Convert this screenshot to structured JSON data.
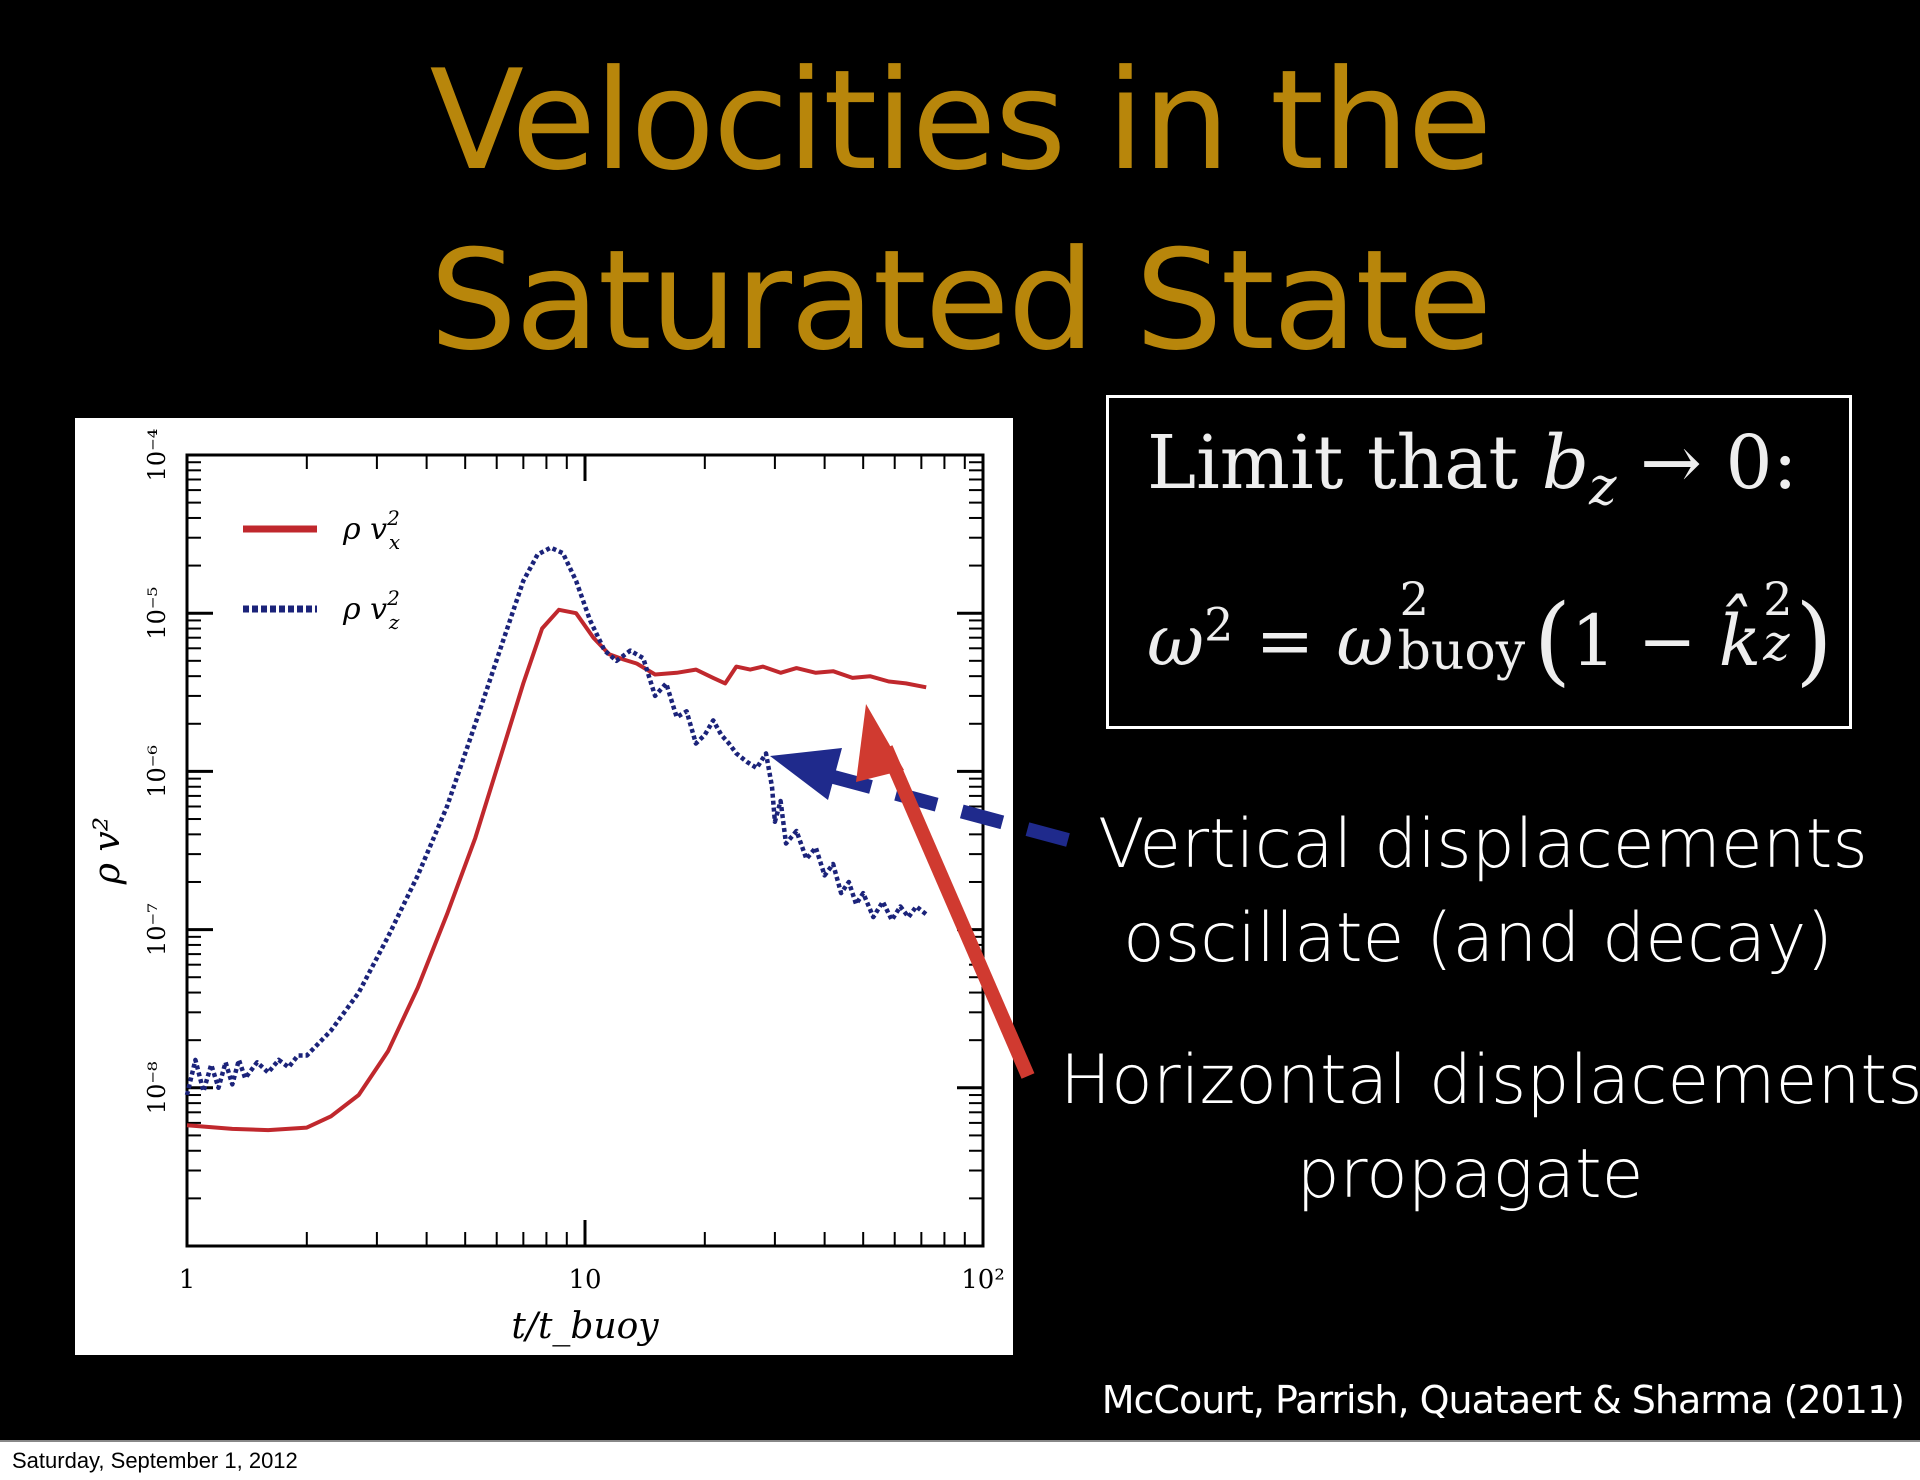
{
  "title": {
    "line1": "Velocities in the",
    "line2": "Saturated State"
  },
  "equation_box": {
    "line1_prefix": "Limit that ",
    "line1_var": "b",
    "line1_sub": "z",
    "line1_suffix": " → 0:",
    "line2_lhs": "ω",
    "line2_lhs_sup": "2",
    "line2_eq": " = ",
    "line2_rhs": "ω",
    "line2_rhs_sup": "2",
    "line2_rhs_sub": "buoy",
    "line2_paren_open": "(",
    "line2_one": "1 − ",
    "line2_k": "k̂",
    "line2_k_sup": "2",
    "line2_k_sub": "z",
    "line2_paren_close": ")"
  },
  "captions": {
    "vertical": [
      "Vertical displacements",
      "oscillate (and decay)"
    ],
    "horizontal": [
      "Horizontal displacements",
      "propagate"
    ]
  },
  "citation": "McCourt, Parrish, Quataert & Sharma (2011)",
  "footer_date": "Saturday, September 1, 2012",
  "colors": {
    "title": "#B8860B",
    "series_x": "#C0282D",
    "series_z": "#1B237A",
    "arrow_red": "#D03A30",
    "arrow_blue": "#1F2A8C"
  },
  "chart_data": {
    "type": "line",
    "xscale": "log",
    "yscale": "log",
    "xlim": [
      1,
      100
    ],
    "ylim": [
      1e-09,
      0.0001
    ],
    "xlabel": "t/t_buoy",
    "ylabel": "ρ v²",
    "x_ticks": [
      {
        "value": 1,
        "label": "1"
      },
      {
        "value": 10,
        "label": "10"
      },
      {
        "value": 100,
        "label": "10²"
      }
    ],
    "y_ticks": [
      {
        "value": 1e-08,
        "label": "10⁻⁸"
      },
      {
        "value": 1e-07,
        "label": "10⁻⁷"
      },
      {
        "value": 1e-06,
        "label": "10⁻⁶"
      },
      {
        "value": 1e-05,
        "label": "10⁻⁵"
      },
      {
        "value": 0.0001,
        "label": "10⁻⁴"
      }
    ],
    "legend_position": "top-left",
    "series": [
      {
        "name": "ρ v_x²",
        "legend_base": "ρ v",
        "legend_sup": "2",
        "legend_sub": "x",
        "style": "solid",
        "x": [
          1,
          1.3,
          1.6,
          2.0,
          2.3,
          2.7,
          3.2,
          3.8,
          4.5,
          5.3,
          6.2,
          7.0,
          7.8,
          8.6,
          9.5,
          10.5,
          11.5,
          12.5,
          13.5,
          15,
          17,
          19,
          21,
          22.5,
          24,
          26,
          28,
          31,
          34,
          38,
          42,
          47,
          52,
          58,
          64,
          72
        ],
        "y": [
          5.8e-09,
          5.5e-09,
          5.4e-09,
          5.6e-09,
          6.6e-09,
          9e-09,
          1.7e-08,
          4.3e-08,
          1.25e-07,
          3.8e-07,
          1.35e-06,
          3.6e-06,
          8e-06,
          1.05e-05,
          1e-05,
          7e-06,
          5.5e-06,
          5.1e-06,
          4.8e-06,
          4.1e-06,
          4.2e-06,
          4.4e-06,
          3.9e-06,
          3.6e-06,
          4.6e-06,
          4.4e-06,
          4.6e-06,
          4.2e-06,
          4.5e-06,
          4.2e-06,
          4.3e-06,
          3.9e-06,
          4e-06,
          3.7e-06,
          3.6e-06,
          3.4e-06
        ]
      },
      {
        "name": "ρ v_z²",
        "legend_base": "ρ v",
        "legend_sup": "2",
        "legend_sub": "z",
        "style": "dotted",
        "x": [
          1,
          1.05,
          1.1,
          1.15,
          1.2,
          1.25,
          1.3,
          1.35,
          1.4,
          1.5,
          1.6,
          1.7,
          1.8,
          1.9,
          2.0,
          2.3,
          2.7,
          3.2,
          3.8,
          4.5,
          5.3,
          6.2,
          7.0,
          7.6,
          8.2,
          8.8,
          9.5,
          10.3,
          11.2,
          12.0,
          13.0,
          14.0,
          15.0,
          16.0,
          17.0,
          18.0,
          19.0,
          20.0,
          21.0,
          22.0,
          23.0,
          24.0,
          25.5,
          27.0,
          28.5,
          29.5,
          30.0,
          31.0,
          32.0,
          34.0,
          36.0,
          38.0,
          40.0,
          42.0,
          44.0,
          46.0,
          48.0,
          50.0,
          53.0,
          56.0,
          59.0,
          62.0,
          65.0,
          68.0,
          72.0
        ],
        "y": [
          9e-09,
          1.5e-08,
          9.5e-09,
          1.4e-08,
          1e-08,
          1.45e-08,
          1.05e-08,
          1.5e-08,
          1.15e-08,
          1.45e-08,
          1.25e-08,
          1.5e-08,
          1.35e-08,
          1.6e-08,
          1.6e-08,
          2.3e-08,
          4e-08,
          9e-08,
          2.2e-07,
          6e-07,
          2e-06,
          6.5e-06,
          1.6e-05,
          2.35e-05,
          2.6e-05,
          2.4e-05,
          1.6e-05,
          9e-06,
          5.8e-06,
          5e-06,
          5.8e-06,
          5.2e-06,
          3e-06,
          3.6e-06,
          2.2e-06,
          2.4e-06,
          1.5e-06,
          1.7e-06,
          2.1e-06,
          1.7e-06,
          1.5e-06,
          1.3e-06,
          1.15e-06,
          1.05e-06,
          1.3e-06,
          8e-07,
          4.8e-07,
          6.5e-07,
          3.5e-07,
          4.2e-07,
          2.8e-07,
          3.3e-07,
          2.2e-07,
          2.6e-07,
          1.7e-07,
          2e-07,
          1.45e-07,
          1.7e-07,
          1.2e-07,
          1.5e-07,
          1.15e-07,
          1.4e-07,
          1.2e-07,
          1.4e-07,
          1.25e-07
        ]
      }
    ]
  }
}
